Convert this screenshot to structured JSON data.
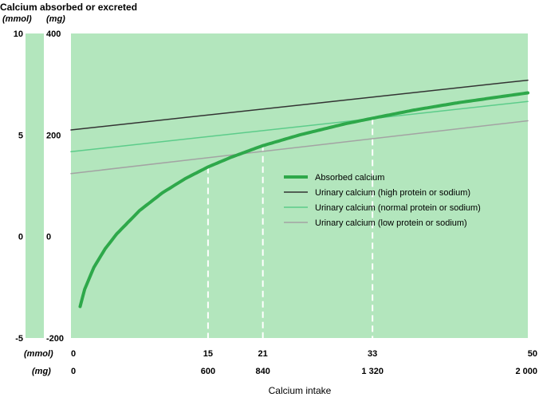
{
  "chart_data": {
    "type": "line",
    "title": "Calcium absorbed or excreted",
    "xlabel": "Calcium intake",
    "y_units": {
      "mmol": "(mmol)",
      "mg": "(mg)"
    },
    "y_ticks_mmol": [
      {
        "value": 10,
        "label": "10"
      },
      {
        "value": 5,
        "label": "5"
      },
      {
        "value": 0,
        "label": "0"
      },
      {
        "value": -5,
        "label": "-5"
      }
    ],
    "y_ticks_mg": [
      {
        "value": 400,
        "label": "400"
      },
      {
        "value": 200,
        "label": "200"
      },
      {
        "value": 0,
        "label": "0"
      },
      {
        "value": -200,
        "label": "-200"
      }
    ],
    "x_units": {
      "mmol": "(mmol)",
      "mg": "(mg)"
    },
    "x_ticks": [
      {
        "mg": 0,
        "mmol_label": "0",
        "mg_label": "0"
      },
      {
        "mg": 600,
        "mmol_label": "15",
        "mg_label": "600"
      },
      {
        "mg": 840,
        "mmol_label": "21",
        "mg_label": "840"
      },
      {
        "mg": 1320,
        "mmol_label": "33",
        "mg_label": "1 320"
      },
      {
        "mg": 2000,
        "mmol_label": "50",
        "mg_label": "2 000"
      }
    ],
    "xlim_mg": [
      0,
      2000
    ],
    "ylim_mg": [
      -200,
      400
    ],
    "series": [
      {
        "name": "Absorbed calcium",
        "color": "#2ea84a",
        "style": "thick",
        "x": [
          40,
          60,
          100,
          150,
          200,
          300,
          400,
          500,
          600,
          700,
          840,
          1000,
          1200,
          1320,
          1500,
          1700,
          2000
        ],
        "y": [
          -138,
          -104,
          -61,
          -24,
          5,
          51,
          86,
          114,
          137,
          156,
          179,
          200,
          222,
          233,
          249,
          264,
          283
        ]
      },
      {
        "name": "Urinary calcium (high protein or sodium)",
        "color": "#333333",
        "x": [
          0,
          2000
        ],
        "y": [
          210,
          308
        ]
      },
      {
        "name": "Urinary calcium (normal protein or sodium)",
        "color": "#5ccc8a",
        "x": [
          0,
          2000
        ],
        "y": [
          167,
          266
        ]
      },
      {
        "name": "Urinary calcium (low protein or sodium)",
        "color": "#a3a3a3",
        "x": [
          0,
          2000
        ],
        "y": [
          124,
          228
        ]
      }
    ],
    "intersections_mg": [
      600,
      840,
      1320
    ],
    "grid": false,
    "legend_position": "right-center"
  },
  "colors": {
    "plot_bg": "#b3e6bd",
    "band_bg": "#b3e6bd",
    "dashed": "#ffffff"
  }
}
